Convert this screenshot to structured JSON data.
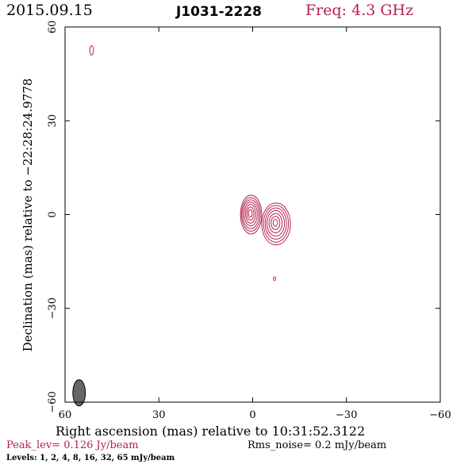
{
  "header": {
    "date": "2015.09.15",
    "source": "J1031-2228",
    "frequency": "Freq: 4.3 GHz"
  },
  "footer": {
    "peak": "Peak_lev=  0.126 Jy/beam",
    "rms": "Rms_noise=  0.2 mJy/beam",
    "levels": "Levels:   1,   2,   4,   8,  16,  32,  65 mJy/beam"
  },
  "colors": {
    "contour": "#b5224e",
    "beam": "#666666",
    "axis": "#000000"
  },
  "chart_data": {
    "type": "contour",
    "xlabel": "Right ascension (mas) relative to 10:31:52.3122",
    "ylabel": "Declination (mas) relative to −22:28:24.9778",
    "xlim": [
      60,
      -60
    ],
    "ylim": [
      -60,
      60
    ],
    "x_ticks": [
      60,
      30,
      0,
      -30,
      -60
    ],
    "y_ticks": [
      -60,
      -30,
      0,
      30,
      60
    ],
    "x_tick_labels": [
      "60",
      "30",
      "0",
      "−30",
      "−60"
    ],
    "y_tick_labels": [
      "−60",
      "−30",
      "0",
      "30",
      "60"
    ],
    "levels_mJy": [
      1,
      2,
      4,
      8,
      16,
      32,
      65
    ],
    "components": [
      {
        "name": "east",
        "x": 0.5,
        "y": 0.0,
        "rx": [
          3.4,
          3.0,
          2.6,
          2.1,
          1.6,
          1.1,
          0.6
        ],
        "ry": [
          6.2,
          5.4,
          4.6,
          3.8,
          3.0,
          2.1,
          1.2
        ]
      },
      {
        "name": "west",
        "x": -7.5,
        "y": -3.0,
        "rx": [
          4.6,
          4.0,
          3.4,
          2.8,
          2.1,
          1.4,
          0.7
        ],
        "ry": [
          6.7,
          5.9,
          5.0,
          4.1,
          3.1,
          2.1,
          1.1
        ]
      }
    ],
    "isolated_contours": [
      {
        "x": 51.5,
        "y": 52.5,
        "rx": 0.6,
        "ry": 1.5
      },
      {
        "x": -7.0,
        "y": -20.5,
        "rx": 0.35,
        "ry": 0.6
      }
    ],
    "beam": {
      "x": 55.5,
      "y": -57.0,
      "major": 4.2,
      "minor": 2.0
    }
  }
}
